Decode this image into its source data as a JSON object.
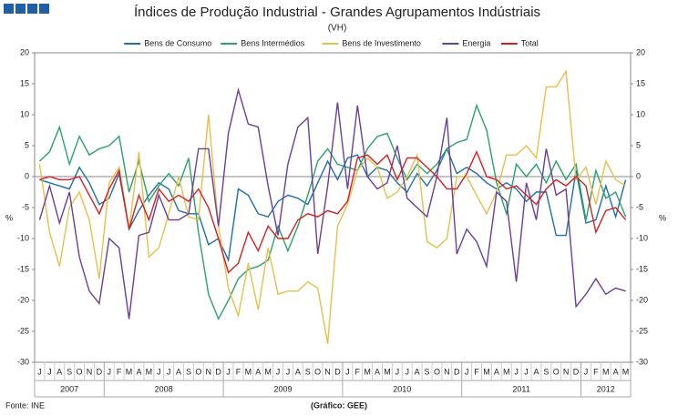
{
  "chart_data": {
    "type": "line",
    "title": "Índices de Produção Industrial - Grandes Agrupamentos Indústriais",
    "subtitle": "(VH)",
    "y_label": "%",
    "y2_label": "%",
    "source": "Fonte: INE",
    "credit": "(Gráfico: GEE)",
    "categories": [
      "J",
      "J",
      "A",
      "S",
      "O",
      "N",
      "D",
      "J",
      "F",
      "M",
      "A",
      "M",
      "J",
      "J",
      "A",
      "S",
      "O",
      "N",
      "D",
      "J",
      "F",
      "M",
      "A",
      "M",
      "J",
      "J",
      "A",
      "S",
      "O",
      "N",
      "D",
      "J",
      "F",
      "M",
      "A",
      "M",
      "J",
      "J",
      "A",
      "S",
      "O",
      "N",
      "D",
      "J",
      "F",
      "M",
      "A",
      "M",
      "J",
      "J",
      "A",
      "S",
      "O",
      "N",
      "D",
      "J",
      "F",
      "M",
      "A",
      "M"
    ],
    "years": [
      "2007",
      "2008",
      "2009",
      "2010",
      "2011",
      "2012"
    ],
    "ylim": [
      -30,
      20
    ],
    "yticks": [
      -30,
      -25,
      -20,
      -15,
      -10,
      -5,
      0,
      5,
      10,
      15,
      20
    ],
    "y2lim": [
      -30,
      20
    ],
    "y2ticks": [
      -30,
      -25,
      -20,
      -15,
      -10,
      -5,
      0,
      5,
      10,
      15,
      20
    ],
    "grid": false,
    "legend": "top",
    "series": [
      {
        "name": "Bens de Consumo",
        "color": "#1f6fa8",
        "values": [
          -0.5,
          -1,
          -1.5,
          -2,
          1.5,
          -1,
          -4.5,
          -3.5,
          0.5,
          -8.5,
          -5.5,
          -3,
          -1,
          -2,
          -5.5,
          -6,
          -6,
          -11,
          -10,
          -13.5,
          -2,
          -3,
          -6,
          -6.5,
          -4,
          -3,
          -3.5,
          -4.5,
          -1,
          2.5,
          -0.5,
          3,
          3.5,
          0,
          1.5,
          1,
          -1,
          -2.5,
          0.5,
          -1.5,
          1,
          4.5,
          0.5,
          1.5,
          0.5,
          -1,
          -2,
          -1,
          -2,
          -4,
          -2.5,
          -2.5,
          -9.5,
          -9.5,
          1,
          -7.5,
          -7,
          -1.5,
          -6.5,
          -0.5
        ]
      },
      {
        "name": "Bens Intermédios",
        "color": "#2aa26a",
        "values": [
          2.5,
          4,
          8,
          2,
          6.5,
          3.5,
          4.5,
          5,
          6.5,
          -2.5,
          2.5,
          -4,
          -1.5,
          0.5,
          -1.5,
          3,
          -9,
          -19,
          -23,
          -20,
          -16.5,
          -15,
          -14.5,
          -13.5,
          -8,
          -12,
          -8,
          -3,
          2.5,
          4.5,
          2,
          1.5,
          1,
          4.5,
          6.5,
          7,
          3,
          -0.5,
          2,
          0.5,
          2,
          4.5,
          5.5,
          6,
          11.5,
          7.5,
          -1,
          -6,
          2,
          0,
          2,
          -1,
          2.5,
          -0.5,
          2,
          -7,
          1,
          -3.5,
          -2.5,
          -6.5
        ]
      },
      {
        "name": "Bens de Investimento",
        "color": "#e6c04a",
        "values": [
          2,
          -9,
          -14.5,
          -5,
          -2.5,
          -7,
          -16.5,
          -1,
          1.5,
          -8.5,
          4,
          -13,
          -11.5,
          -6,
          0,
          -6.5,
          -7,
          10,
          -8,
          -18,
          -22.5,
          -14,
          -21.5,
          -11.5,
          -19,
          -18.5,
          -18.5,
          -17,
          -18,
          -27,
          -8,
          -4.5,
          1,
          3,
          1.5,
          -3.5,
          -2.5,
          0,
          3.5,
          -10.5,
          -11.5,
          -10,
          0,
          0,
          -3,
          -6,
          -2.5,
          3.5,
          3.5,
          5,
          3,
          14.5,
          14.5,
          17,
          -0.5,
          1.5,
          -4.5,
          2.5,
          -0.5,
          -1.5
        ]
      },
      {
        "name": "Energia",
        "color": "#6b3f98",
        "values": [
          -7,
          -1.5,
          -7.5,
          -2.5,
          -13,
          -18.5,
          -20.5,
          -10,
          -11.5,
          -23,
          -9.5,
          -9,
          -3,
          -7,
          -7,
          -6,
          4.5,
          4.5,
          -8,
          7,
          14,
          8.5,
          8,
          -1.5,
          -9.5,
          2,
          8,
          9.5,
          -12.5,
          -1.5,
          12,
          -2,
          11.5,
          0,
          -2,
          -1,
          5,
          -3.5,
          -5,
          -6.5,
          0,
          9.5,
          -12.5,
          -8.5,
          -10.5,
          -14.5,
          -2.5,
          -4,
          -17,
          -1,
          -7,
          4.5,
          -3,
          -2,
          -21,
          -19,
          -16.5,
          -19,
          -18,
          -18.5
        ]
      },
      {
        "name": "Total",
        "color": "#d62020",
        "values": [
          -0.5,
          0,
          -0.5,
          -0.5,
          0,
          -3,
          -6,
          -2,
          1,
          -8.5,
          -3,
          -7,
          -2,
          -4,
          -3,
          -4,
          -2,
          -5,
          -10,
          -15.5,
          -14,
          -9,
          -12,
          -8,
          -10,
          -10,
          -7,
          -6,
          -6.5,
          -5.5,
          -6,
          -4,
          3,
          3.5,
          2,
          3.5,
          -0.5,
          3,
          3,
          1.5,
          0,
          -2,
          -2,
          0.5,
          4,
          0,
          -0.5,
          -2,
          -1.5,
          -3,
          -4.5,
          -2,
          -0.5,
          -1.5,
          0,
          -1.5,
          -9,
          -5.5,
          -5,
          -7
        ]
      }
    ]
  }
}
